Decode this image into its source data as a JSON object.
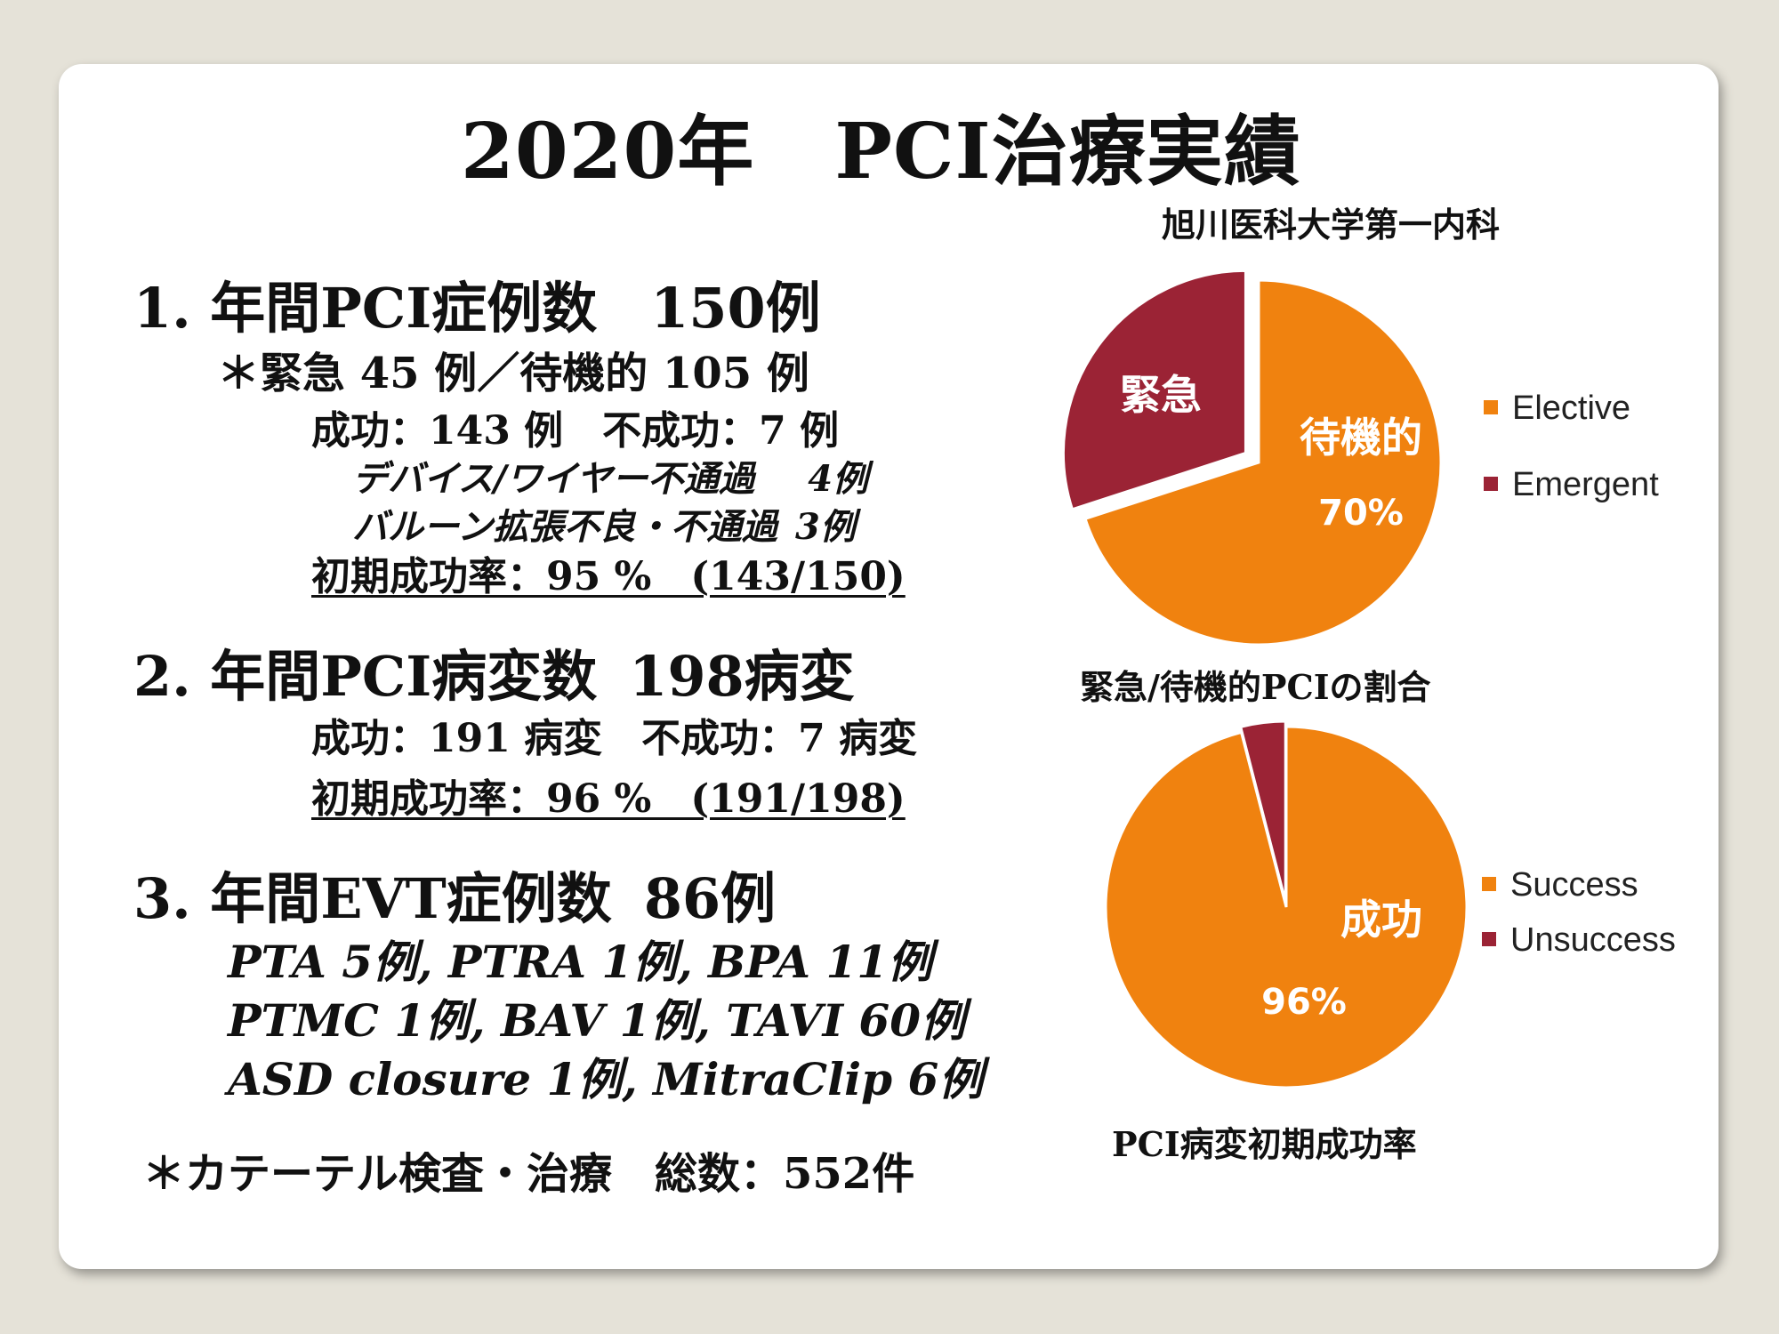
{
  "title": {
    "year": "2020年",
    "main": "PCI治療実績"
  },
  "section1": {
    "heading_label": "1. 年間PCI症例数",
    "heading_value": "150例",
    "breakdown": "＊緊急 45 例／待機的 105 例",
    "success_line": "成功：143 例　不成功：7 例",
    "fail_reason_1_label": "デバイス/ワイヤー不通過",
    "fail_reason_1_value": "4例",
    "fail_reason_2_label": "バルーン拡張不良・不通過",
    "fail_reason_2_value": "3例",
    "rate_line": "初期成功率：95 %　(143/150)"
  },
  "section2": {
    "heading_label": "2. 年間PCI病変数",
    "heading_value": "198病変",
    "success_line": "成功：191 病変　不成功：7 病変",
    "rate_line": "初期成功率：96 %　(191/198)"
  },
  "section3": {
    "heading_label": "3. 年間EVT症例数",
    "heading_value": "86例",
    "lines": [
      "PTA 5例,  PTRA 1例,  BPA 11例",
      "PTMC 1例, BAV 1例, TAVI 60例",
      "ASD closure 1例, MitraClip 6例"
    ]
  },
  "footer_note": "＊カテーテル検査・治療　総数：552件",
  "department": "旭川医科大学第一内科",
  "chart_data": [
    {
      "type": "pie",
      "title": "緊急/待機的PCIの割合",
      "categories": [
        "Elective",
        "Emergent"
      ],
      "values": [
        70,
        30
      ],
      "colors": [
        "#f0820f",
        "#9b2335"
      ],
      "slice_labels": {
        "elective": "待機的",
        "elective_pct": "70%",
        "emergent": "緊急"
      },
      "legend": [
        "Elective",
        "Emergent"
      ],
      "legend_position": "right"
    },
    {
      "type": "pie",
      "title": "PCI病変初期成功率",
      "categories": [
        "Success",
        "Unsuccess"
      ],
      "values": [
        96,
        4
      ],
      "colors": [
        "#f0820f",
        "#9b2335"
      ],
      "slice_labels": {
        "success": "成功",
        "success_pct": "96%"
      },
      "legend": [
        "Success",
        "Unsuccess"
      ],
      "legend_position": "right"
    }
  ]
}
